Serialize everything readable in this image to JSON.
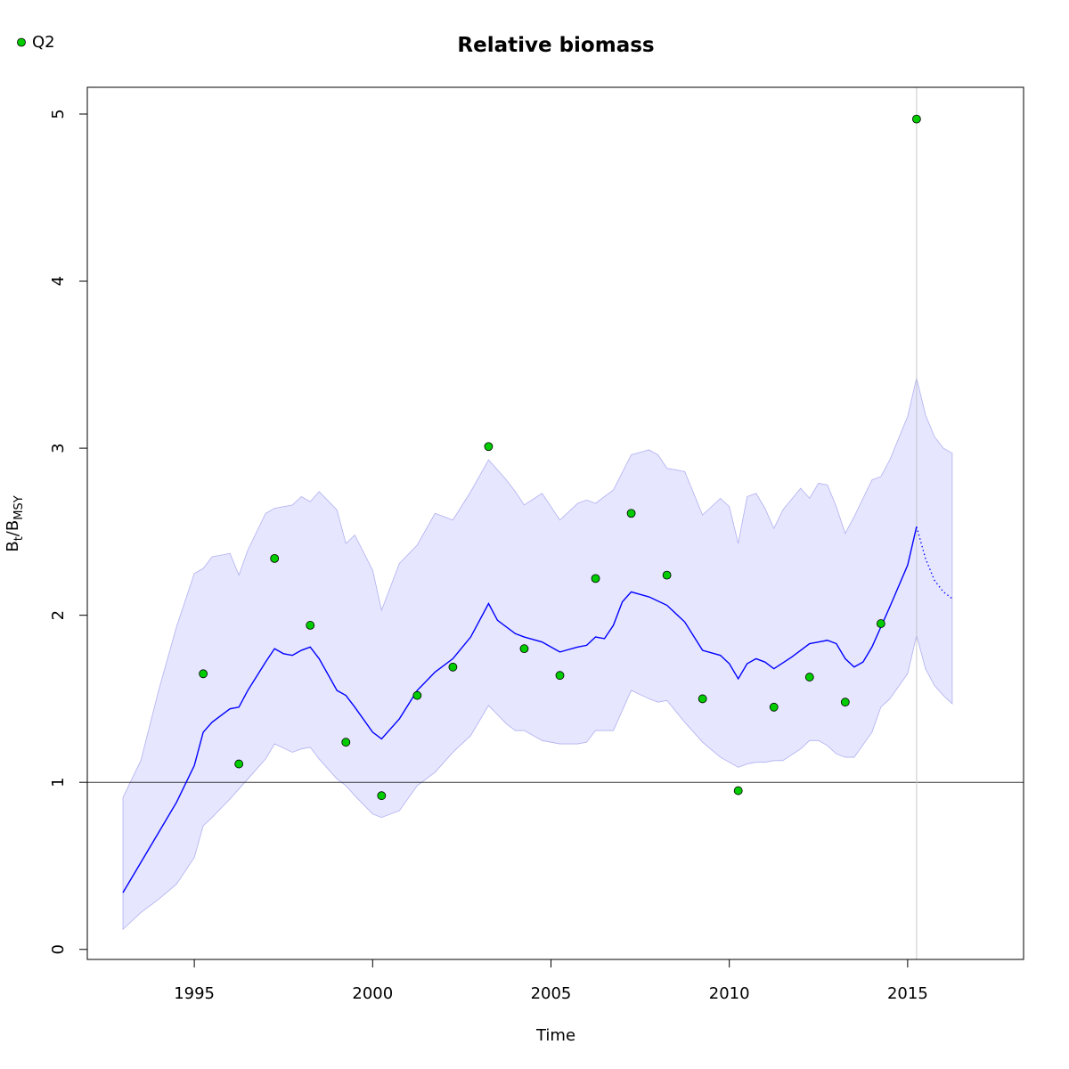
{
  "chart_data": {
    "type": "line",
    "title": "Relative biomass",
    "xlabel": "Time",
    "ylabel_main": "B",
    "ylabel_sub1": "t",
    "ylabel_sep": "/B",
    "ylabel_sub2": "MSY",
    "xlim": [
      1992.0,
      2018.25
    ],
    "ylim": [
      -0.06,
      5.16
    ],
    "x_ticks": [
      1995,
      2000,
      2005,
      2010,
      2015
    ],
    "y_ticks": [
      0,
      1,
      2,
      3,
      4,
      5
    ],
    "reference_line_y": 1,
    "vertical_line_x": 2015.25,
    "legend": {
      "position": "top-left",
      "entries": [
        "Q2"
      ]
    },
    "series": [
      {
        "name": "Q2",
        "kind": "points",
        "color": "#00cc00",
        "x": [
          1995.25,
          1996.25,
          1997.25,
          1998.25,
          1999.25,
          2000.25,
          2001.25,
          2002.25,
          2003.25,
          2004.25,
          2005.25,
          2006.25,
          2007.25,
          2008.25,
          2009.25,
          2010.25,
          2011.25,
          2012.25,
          2013.25,
          2014.25,
          2015.25
        ],
        "y": [
          1.65,
          1.11,
          2.34,
          1.94,
          1.24,
          0.92,
          1.52,
          1.69,
          3.01,
          1.8,
          1.64,
          2.22,
          2.61,
          2.24,
          1.5,
          0.95,
          1.45,
          1.63,
          1.48,
          1.95,
          4.97
        ]
      },
      {
        "kind": "estimate",
        "color": "#0000ff",
        "x": [
          1993.0,
          1993.5,
          1994.0,
          1994.5,
          1995.0,
          1995.25,
          1995.5,
          1996.0,
          1996.25,
          1996.5,
          1997.0,
          1997.25,
          1997.5,
          1997.75,
          1998.0,
          1998.25,
          1998.5,
          1999.0,
          1999.25,
          1999.5,
          2000.0,
          2000.25,
          2000.75,
          2001.25,
          2001.75,
          2002.25,
          2002.75,
          2003.25,
          2003.5,
          2004.0,
          2004.25,
          2004.75,
          2005.25,
          2005.75,
          2006.0,
          2006.25,
          2006.5,
          2006.75,
          2007.0,
          2007.25,
          2007.75,
          2008.25,
          2008.75,
          2009.25,
          2009.75,
          2010.0,
          2010.25,
          2010.5,
          2010.75,
          2011.0,
          2011.25,
          2011.75,
          2012.0,
          2012.25,
          2012.5,
          2012.75,
          2013.0,
          2013.25,
          2013.5,
          2013.75,
          2014.0,
          2014.5,
          2015.0,
          2015.25
        ],
        "y": [
          0.34,
          0.52,
          0.7,
          0.88,
          1.1,
          1.3,
          1.36,
          1.44,
          1.45,
          1.55,
          1.72,
          1.8,
          1.77,
          1.76,
          1.79,
          1.81,
          1.74,
          1.55,
          1.52,
          1.45,
          1.3,
          1.26,
          1.38,
          1.55,
          1.66,
          1.74,
          1.87,
          2.07,
          1.97,
          1.89,
          1.87,
          1.84,
          1.78,
          1.81,
          1.82,
          1.87,
          1.86,
          1.94,
          2.08,
          2.14,
          2.11,
          2.06,
          1.96,
          1.79,
          1.76,
          1.71,
          1.62,
          1.71,
          1.74,
          1.72,
          1.68,
          1.75,
          1.79,
          1.83,
          1.84,
          1.85,
          1.83,
          1.74,
          1.69,
          1.72,
          1.81,
          2.05,
          2.3,
          2.53
        ]
      },
      {
        "kind": "projection",
        "color": "#0000ff",
        "x": [
          2015.25,
          2015.5,
          2015.75,
          2016.0,
          2016.25
        ],
        "y": [
          2.53,
          2.34,
          2.21,
          2.14,
          2.1
        ]
      }
    ],
    "band": {
      "color": "#e6e6ff",
      "x": [
        1993.0,
        1993.5,
        1994.0,
        1994.5,
        1995.0,
        1995.25,
        1995.5,
        1996.0,
        1996.25,
        1996.5,
        1997.0,
        1997.25,
        1997.75,
        1998.0,
        1998.25,
        1998.5,
        1999.0,
        1999.25,
        1999.5,
        2000.0,
        2000.25,
        2000.75,
        2001.25,
        2001.75,
        2002.25,
        2002.75,
        2003.25,
        2003.75,
        2004.0,
        2004.25,
        2004.75,
        2005.25,
        2005.75,
        2006.0,
        2006.25,
        2006.75,
        2007.25,
        2007.75,
        2008.0,
        2008.25,
        2008.75,
        2009.25,
        2009.75,
        2010.0,
        2010.25,
        2010.5,
        2010.75,
        2011.0,
        2011.25,
        2011.5,
        2012.0,
        2012.25,
        2012.5,
        2012.75,
        2013.0,
        2013.25,
        2013.5,
        2014.0,
        2014.25,
        2014.5,
        2015.0,
        2015.25,
        2015.5,
        2015.75,
        2016.0,
        2016.25
      ],
      "upper": [
        0.91,
        1.13,
        1.55,
        1.93,
        2.25,
        2.28,
        2.35,
        2.37,
        2.24,
        2.39,
        2.61,
        2.64,
        2.66,
        2.71,
        2.68,
        2.74,
        2.63,
        2.43,
        2.48,
        2.27,
        2.03,
        2.31,
        2.42,
        2.61,
        2.57,
        2.74,
        2.93,
        2.81,
        2.74,
        2.66,
        2.73,
        2.57,
        2.67,
        2.69,
        2.67,
        2.75,
        2.96,
        2.99,
        2.96,
        2.88,
        2.86,
        2.6,
        2.7,
        2.65,
        2.43,
        2.71,
        2.73,
        2.64,
        2.52,
        2.63,
        2.76,
        2.7,
        2.79,
        2.78,
        2.65,
        2.49,
        2.59,
        2.81,
        2.83,
        2.93,
        3.19,
        3.42,
        3.2,
        3.07,
        3.0,
        2.97
      ],
      "lower": [
        0.12,
        0.22,
        0.3,
        0.39,
        0.55,
        0.74,
        0.79,
        0.9,
        0.96,
        1.02,
        1.14,
        1.23,
        1.18,
        1.2,
        1.21,
        1.14,
        1.02,
        0.98,
        0.92,
        0.81,
        0.79,
        0.83,
        0.98,
        1.06,
        1.18,
        1.28,
        1.46,
        1.35,
        1.31,
        1.31,
        1.25,
        1.23,
        1.23,
        1.24,
        1.31,
        1.31,
        1.55,
        1.5,
        1.48,
        1.49,
        1.36,
        1.24,
        1.15,
        1.12,
        1.09,
        1.11,
        1.12,
        1.12,
        1.13,
        1.13,
        1.2,
        1.25,
        1.25,
        1.22,
        1.17,
        1.15,
        1.15,
        1.3,
        1.45,
        1.5,
        1.65,
        1.88,
        1.68,
        1.58,
        1.52,
        1.47
      ]
    }
  }
}
